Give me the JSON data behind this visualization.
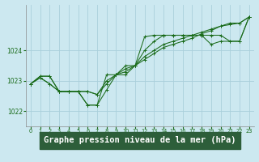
{
  "background_color": "#cce8f0",
  "label_bg_color": "#2d6b4a",
  "grid_color": "#aacfdb",
  "line_color": "#1a6b1a",
  "xlabel": "Graphe pression niveau de la mer (hPa)",
  "xlabel_fontsize": 7.5,
  "ylim": [
    1021.5,
    1025.5
  ],
  "xlim": [
    -0.5,
    23.5
  ],
  "yticks": [
    1022,
    1023,
    1024
  ],
  "ytick_labels": [
    "1022",
    "1023",
    "1024"
  ],
  "xticks": [
    0,
    1,
    2,
    3,
    4,
    5,
    6,
    7,
    8,
    9,
    10,
    11,
    12,
    13,
    14,
    15,
    16,
    17,
    18,
    19,
    20,
    21,
    22,
    23
  ],
  "series": [
    [
      1022.9,
      1023.1,
      1022.9,
      1022.65,
      1022.65,
      1022.65,
      1022.2,
      1022.2,
      1022.7,
      1023.2,
      1023.2,
      1023.5,
      1024.45,
      1024.5,
      1024.5,
      1024.5,
      1024.5,
      1024.5,
      1024.5,
      1024.5,
      1024.5,
      1024.3,
      1024.3,
      1025.1
    ],
    [
      1022.9,
      1023.1,
      1022.9,
      1022.65,
      1022.65,
      1022.65,
      1022.2,
      1022.2,
      1023.2,
      1023.2,
      1023.5,
      1023.5,
      1024.0,
      1024.3,
      1024.5,
      1024.5,
      1024.5,
      1024.5,
      1024.5,
      1024.2,
      1024.3,
      1024.3,
      1024.3,
      1025.1
    ],
    [
      1022.9,
      1023.15,
      1023.15,
      1022.65,
      1022.65,
      1022.65,
      1022.65,
      1022.55,
      1022.9,
      1023.2,
      1023.3,
      1023.5,
      1023.8,
      1024.0,
      1024.2,
      1024.3,
      1024.4,
      1024.5,
      1024.6,
      1024.7,
      1024.8,
      1024.9,
      1024.9,
      1025.1
    ],
    [
      1022.9,
      1023.15,
      1023.15,
      1022.65,
      1022.65,
      1022.65,
      1022.65,
      1022.55,
      1023.0,
      1023.2,
      1023.4,
      1023.5,
      1023.7,
      1023.9,
      1024.1,
      1024.2,
      1024.3,
      1024.4,
      1024.55,
      1024.65,
      1024.8,
      1024.85,
      1024.9,
      1025.1
    ]
  ]
}
